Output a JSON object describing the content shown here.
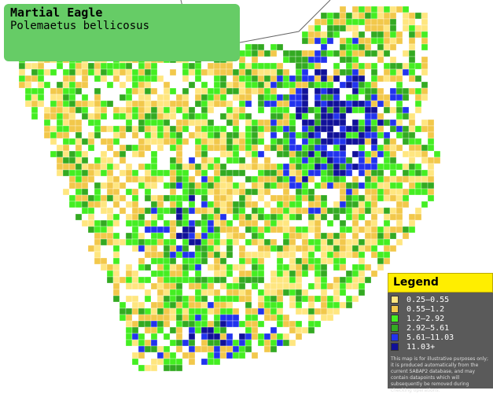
{
  "header": {
    "title": "Martial Eagle",
    "subtitle": "Polemaetus bellicosus"
  },
  "legend": {
    "title": "Legend",
    "items": [
      {
        "label": "0.25–0.55",
        "color": "#ffe680"
      },
      {
        "label": "0.55–1.2",
        "color": "#f2c84b"
      },
      {
        "label": "1.2–2.92",
        "color": "#44ee22"
      },
      {
        "label": "2.92–5.61",
        "color": "#33aa22"
      },
      {
        "label": "5.61–11.03",
        "color": "#2233ee"
      },
      {
        "label": "11.03+",
        "color": "#111199"
      }
    ],
    "disclaimer": "This map is for illustrative purposes only; it is produced automatically from the current SABAP2 database, and may contain datapoints which will subsequently be removed during checking operations."
  }
}
